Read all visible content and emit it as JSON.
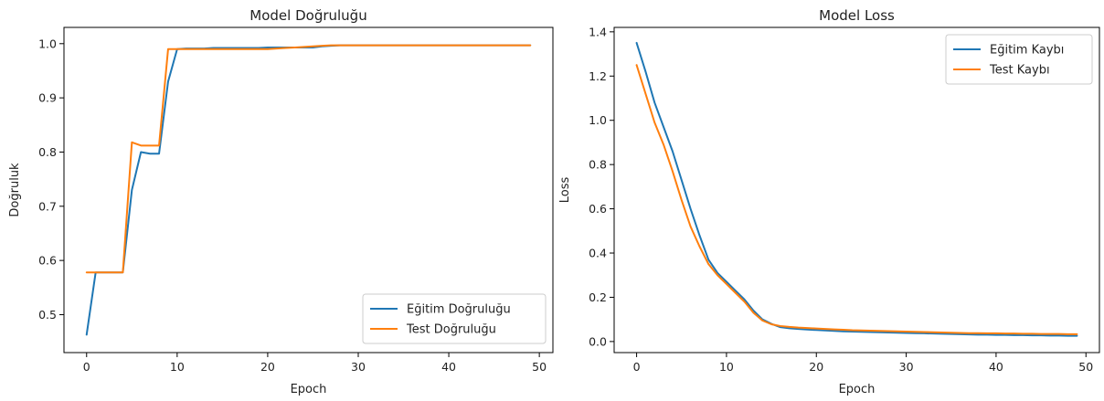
{
  "chart_data": [
    {
      "type": "line",
      "title": "Model Doğruluğu",
      "xlabel": "Epoch",
      "ylabel": "Doğruluk",
      "xlim": [
        -2.5,
        51.5
      ],
      "ylim": [
        0.43,
        1.03
      ],
      "xticks": [
        0,
        10,
        20,
        30,
        40,
        50
      ],
      "yticks": [
        0.5,
        0.6,
        0.7,
        0.8,
        0.9,
        1.0
      ],
      "ytick_labels": [
        "0.5",
        "0.6",
        "0.7",
        "0.8",
        "0.9",
        "1.0"
      ],
      "legend_loc": "lower-right",
      "grid": false,
      "x": [
        0,
        1,
        2,
        3,
        4,
        5,
        6,
        7,
        8,
        9,
        10,
        11,
        12,
        13,
        14,
        15,
        16,
        17,
        18,
        19,
        20,
        21,
        22,
        23,
        24,
        25,
        26,
        27,
        28,
        29,
        30,
        31,
        32,
        33,
        34,
        35,
        36,
        37,
        38,
        39,
        40,
        41,
        42,
        43,
        44,
        45,
        46,
        47,
        48,
        49
      ],
      "series": [
        {
          "name": "Eğitim Doğruluğu",
          "color": "#1f77b4",
          "values": [
            0.463,
            0.578,
            0.578,
            0.578,
            0.578,
            0.73,
            0.8,
            0.797,
            0.797,
            0.93,
            0.99,
            0.991,
            0.991,
            0.991,
            0.992,
            0.992,
            0.992,
            0.992,
            0.992,
            0.992,
            0.993,
            0.993,
            0.993,
            0.993,
            0.993,
            0.993,
            0.995,
            0.996,
            0.997,
            0.997,
            0.997,
            0.997,
            0.997,
            0.997,
            0.997,
            0.997,
            0.997,
            0.997,
            0.997,
            0.997,
            0.997,
            0.997,
            0.997,
            0.997,
            0.997,
            0.997,
            0.997,
            0.997,
            0.997,
            0.997
          ]
        },
        {
          "name": "Test Doğruluğu",
          "color": "#ff7f0e",
          "values": [
            0.578,
            0.578,
            0.578,
            0.578,
            0.578,
            0.818,
            0.812,
            0.812,
            0.812,
            0.99,
            0.99,
            0.99,
            0.99,
            0.99,
            0.99,
            0.99,
            0.99,
            0.99,
            0.99,
            0.99,
            0.99,
            0.991,
            0.992,
            0.993,
            0.994,
            0.995,
            0.996,
            0.997,
            0.997,
            0.997,
            0.997,
            0.997,
            0.997,
            0.997,
            0.997,
            0.997,
            0.997,
            0.997,
            0.997,
            0.997,
            0.997,
            0.997,
            0.997,
            0.997,
            0.997,
            0.997,
            0.997,
            0.997,
            0.997,
            0.997
          ]
        }
      ]
    },
    {
      "type": "line",
      "title": "Model Loss",
      "xlabel": "Epoch",
      "ylabel": "Loss",
      "xlim": [
        -2.5,
        51.5
      ],
      "ylim": [
        -0.05,
        1.42
      ],
      "xticks": [
        0,
        10,
        20,
        30,
        40,
        50
      ],
      "yticks": [
        0.0,
        0.2,
        0.4,
        0.6,
        0.8,
        1.0,
        1.2,
        1.4
      ],
      "ytick_labels": [
        "0.0",
        "0.2",
        "0.4",
        "0.6",
        "0.8",
        "1.0",
        "1.2",
        "1.4"
      ],
      "legend_loc": "upper-right",
      "grid": false,
      "x": [
        0,
        1,
        2,
        3,
        4,
        5,
        6,
        7,
        8,
        9,
        10,
        11,
        12,
        13,
        14,
        15,
        16,
        17,
        18,
        19,
        20,
        21,
        22,
        23,
        24,
        25,
        26,
        27,
        28,
        29,
        30,
        31,
        32,
        33,
        34,
        35,
        36,
        37,
        38,
        39,
        40,
        41,
        42,
        43,
        44,
        45,
        46,
        47,
        48,
        49
      ],
      "series": [
        {
          "name": "Eğitim Kaybı",
          "color": "#1f77b4",
          "values": [
            1.35,
            1.22,
            1.08,
            0.97,
            0.86,
            0.73,
            0.6,
            0.48,
            0.37,
            0.31,
            0.27,
            0.23,
            0.19,
            0.14,
            0.1,
            0.08,
            0.065,
            0.06,
            0.057,
            0.054,
            0.052,
            0.05,
            0.048,
            0.046,
            0.045,
            0.044,
            0.043,
            0.042,
            0.041,
            0.04,
            0.039,
            0.038,
            0.037,
            0.036,
            0.035,
            0.034,
            0.033,
            0.032,
            0.031,
            0.031,
            0.03,
            0.03,
            0.029,
            0.029,
            0.028,
            0.028,
            0.027,
            0.027,
            0.026,
            0.026
          ]
        },
        {
          "name": "Test Kaybı",
          "color": "#ff7f0e",
          "values": [
            1.25,
            1.12,
            0.99,
            0.89,
            0.77,
            0.64,
            0.52,
            0.43,
            0.35,
            0.3,
            0.26,
            0.22,
            0.18,
            0.13,
            0.095,
            0.078,
            0.07,
            0.066,
            0.063,
            0.061,
            0.059,
            0.057,
            0.055,
            0.053,
            0.051,
            0.05,
            0.049,
            0.048,
            0.047,
            0.046,
            0.045,
            0.044,
            0.043,
            0.042,
            0.041,
            0.04,
            0.039,
            0.038,
            0.038,
            0.037,
            0.037,
            0.036,
            0.036,
            0.035,
            0.035,
            0.034,
            0.034,
            0.034,
            0.033,
            0.033
          ]
        }
      ]
    }
  ]
}
